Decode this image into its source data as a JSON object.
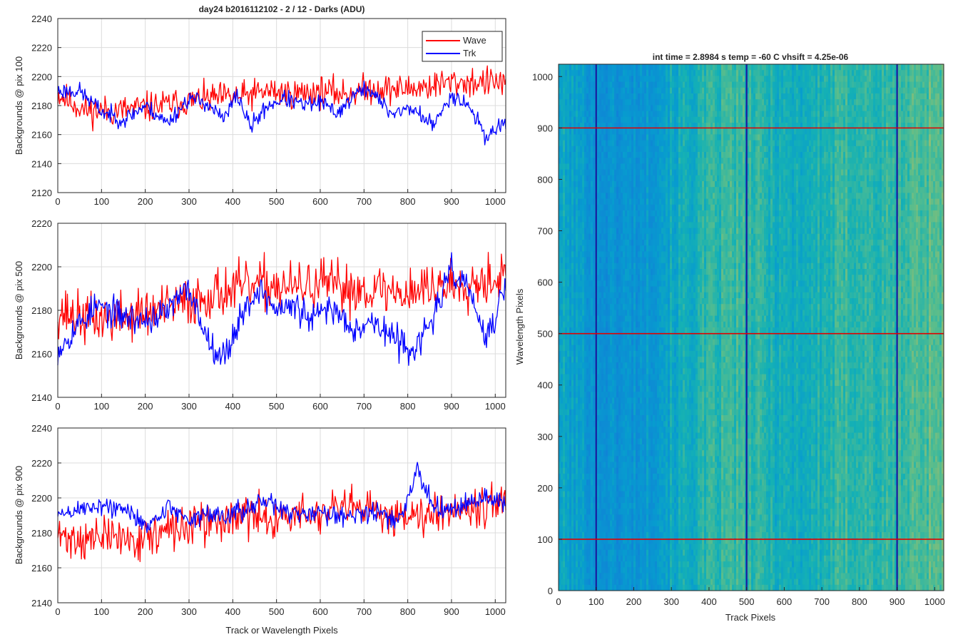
{
  "figure_title": "day24 b2016112102 - 2 / 12 - Darks (ADU)",
  "colors": {
    "wave": "#ff0000",
    "trk": "#0000ff",
    "grid": "#dcdcdc",
    "axis": "#262626"
  },
  "chart_data": [
    {
      "type": "line",
      "title": "day24 b2016112102 - 2 / 12 - Darks (ADU)",
      "xlabel": "",
      "ylabel": "Backgrounds @ pix 100",
      "xlim": [
        0,
        1024
      ],
      "ylim": [
        2120,
        2240
      ],
      "xticks": [
        0,
        100,
        200,
        300,
        400,
        500,
        600,
        700,
        800,
        900,
        1000
      ],
      "yticks": [
        2120,
        2140,
        2160,
        2180,
        2200,
        2220,
        2240
      ],
      "grid": true,
      "legend": "top-right",
      "series": [
        {
          "name": "Wave",
          "color": "#ff0000",
          "trend": [
            [
              0,
              2188
            ],
            [
              60,
              2177
            ],
            [
              120,
              2176
            ],
            [
              180,
              2178
            ],
            [
              240,
              2180
            ],
            [
              300,
              2183
            ],
            [
              360,
              2185
            ],
            [
              420,
              2186
            ],
            [
              480,
              2190
            ],
            [
              540,
              2188
            ],
            [
              600,
              2190
            ],
            [
              660,
              2188
            ],
            [
              720,
              2192
            ],
            [
              780,
              2191
            ],
            [
              840,
              2193
            ],
            [
              900,
              2196
            ],
            [
              960,
              2196
            ],
            [
              1024,
              2196
            ]
          ],
          "noise": 9,
          "seed": 11
        },
        {
          "name": "Trk",
          "color": "#0000ff",
          "trend": [
            [
              0,
              2190
            ],
            [
              50,
              2190
            ],
            [
              100,
              2176
            ],
            [
              150,
              2170
            ],
            [
              200,
              2180
            ],
            [
              250,
              2168
            ],
            [
              300,
              2185
            ],
            [
              340,
              2182
            ],
            [
              380,
              2170
            ],
            [
              410,
              2188
            ],
            [
              440,
              2165
            ],
            [
              480,
              2180
            ],
            [
              520,
              2185
            ],
            [
              560,
              2180
            ],
            [
              600,
              2182
            ],
            [
              640,
              2175
            ],
            [
              680,
              2188
            ],
            [
              710,
              2192
            ],
            [
              760,
              2175
            ],
            [
              810,
              2178
            ],
            [
              860,
              2166
            ],
            [
              900,
              2188
            ],
            [
              940,
              2180
            ],
            [
              980,
              2158
            ],
            [
              1024,
              2170
            ]
          ],
          "noise": 5,
          "seed": 23
        }
      ]
    },
    {
      "type": "line",
      "title": "",
      "xlabel": "",
      "ylabel": "Backgrounds @ pix 500",
      "xlim": [
        0,
        1024
      ],
      "ylim": [
        2140,
        2220
      ],
      "xticks": [
        0,
        100,
        200,
        300,
        400,
        500,
        600,
        700,
        800,
        900,
        1000
      ],
      "yticks": [
        2140,
        2160,
        2180,
        2200,
        2220
      ],
      "grid": true,
      "legend": "",
      "series": [
        {
          "name": "Wave",
          "color": "#ff0000",
          "trend": [
            [
              0,
              2180
            ],
            [
              60,
              2176
            ],
            [
              120,
              2176
            ],
            [
              180,
              2178
            ],
            [
              240,
              2180
            ],
            [
              300,
              2184
            ],
            [
              360,
              2188
            ],
            [
              420,
              2190
            ],
            [
              480,
              2192
            ],
            [
              540,
              2190
            ],
            [
              600,
              2192
            ],
            [
              660,
              2190
            ],
            [
              720,
              2190
            ],
            [
              780,
              2188
            ],
            [
              840,
              2190
            ],
            [
              900,
              2192
            ],
            [
              960,
              2194
            ],
            [
              1024,
              2196
            ]
          ],
          "noise": 10,
          "seed": 37
        },
        {
          "name": "Trk",
          "color": "#0000ff",
          "trend": [
            [
              0,
              2162
            ],
            [
              40,
              2172
            ],
            [
              90,
              2182
            ],
            [
              140,
              2178
            ],
            [
              190,
              2175
            ],
            [
              240,
              2178
            ],
            [
              300,
              2190
            ],
            [
              340,
              2168
            ],
            [
              380,
              2158
            ],
            [
              420,
              2178
            ],
            [
              460,
              2190
            ],
            [
              500,
              2180
            ],
            [
              540,
              2182
            ],
            [
              580,
              2175
            ],
            [
              620,
              2182
            ],
            [
              680,
              2172
            ],
            [
              720,
              2175
            ],
            [
              780,
              2165
            ],
            [
              820,
              2162
            ],
            [
              860,
              2178
            ],
            [
              900,
              2198
            ],
            [
              940,
              2190
            ],
            [
              980,
              2165
            ],
            [
              1024,
              2192
            ]
          ],
          "noise": 6,
          "seed": 53
        }
      ]
    },
    {
      "type": "line",
      "title": "",
      "xlabel": "Track or Wavelength Pixels",
      "ylabel": "Backgrounds @ pix 900",
      "xlim": [
        0,
        1024
      ],
      "ylim": [
        2140,
        2240
      ],
      "xticks": [
        0,
        100,
        200,
        300,
        400,
        500,
        600,
        700,
        800,
        900,
        1000
      ],
      "yticks": [
        2140,
        2160,
        2180,
        2200,
        2220,
        2240
      ],
      "grid": true,
      "legend": "",
      "series": [
        {
          "name": "Wave",
          "color": "#ff0000",
          "trend": [
            [
              0,
              2178
            ],
            [
              60,
              2176
            ],
            [
              120,
              2178
            ],
            [
              180,
              2176
            ],
            [
              240,
              2180
            ],
            [
              300,
              2184
            ],
            [
              360,
              2186
            ],
            [
              420,
              2190
            ],
            [
              480,
              2188
            ],
            [
              540,
              2190
            ],
            [
              600,
              2190
            ],
            [
              660,
              2194
            ],
            [
              720,
              2192
            ],
            [
              780,
              2190
            ],
            [
              840,
              2192
            ],
            [
              900,
              2194
            ],
            [
              960,
              2196
            ],
            [
              1024,
              2198
            ]
          ],
          "noise": 10,
          "seed": 71
        },
        {
          "name": "Trk",
          "color": "#0000ff",
          "trend": [
            [
              0,
              2190
            ],
            [
              60,
              2194
            ],
            [
              100,
              2196
            ],
            [
              160,
              2192
            ],
            [
              210,
              2184
            ],
            [
              250,
              2195
            ],
            [
              300,
              2188
            ],
            [
              350,
              2190
            ],
            [
              420,
              2192
            ],
            [
              480,
              2198
            ],
            [
              540,
              2190
            ],
            [
              600,
              2192
            ],
            [
              660,
              2190
            ],
            [
              720,
              2192
            ],
            [
              780,
              2186
            ],
            [
              820,
              2215
            ],
            [
              860,
              2196
            ],
            [
              920,
              2194
            ],
            [
              960,
              2200
            ],
            [
              1024,
              2198
            ]
          ],
          "noise": 5,
          "seed": 89
        }
      ]
    },
    {
      "type": "heatmap",
      "title": "int time = 2.8984 s    temp = -60 C    vhsift = 4.25e-06",
      "xlabel": "Track Pixels",
      "ylabel": "Wavelength Pixels",
      "xlim": [
        0,
        1024
      ],
      "ylim": [
        0,
        1024
      ],
      "xticks": [
        0,
        100,
        200,
        300,
        400,
        500,
        600,
        700,
        800,
        900,
        1000
      ],
      "yticks": [
        0,
        100,
        200,
        300,
        400,
        500,
        600,
        700,
        800,
        900,
        1000
      ],
      "grid": false,
      "colormap": "parula",
      "blue_vertical_lines_x": [
        100,
        500,
        900
      ],
      "red_horizontal_lines_y": [
        100,
        500,
        900
      ],
      "column_level_profile": [
        [
          0,
          0.5
        ],
        [
          60,
          0.45
        ],
        [
          140,
          0.4
        ],
        [
          220,
          0.42
        ],
        [
          300,
          0.5
        ],
        [
          380,
          0.55
        ],
        [
          460,
          0.6
        ],
        [
          540,
          0.57
        ],
        [
          620,
          0.52
        ],
        [
          700,
          0.55
        ],
        [
          780,
          0.6
        ],
        [
          860,
          0.57
        ],
        [
          940,
          0.62
        ],
        [
          1024,
          0.66
        ]
      ]
    }
  ]
}
